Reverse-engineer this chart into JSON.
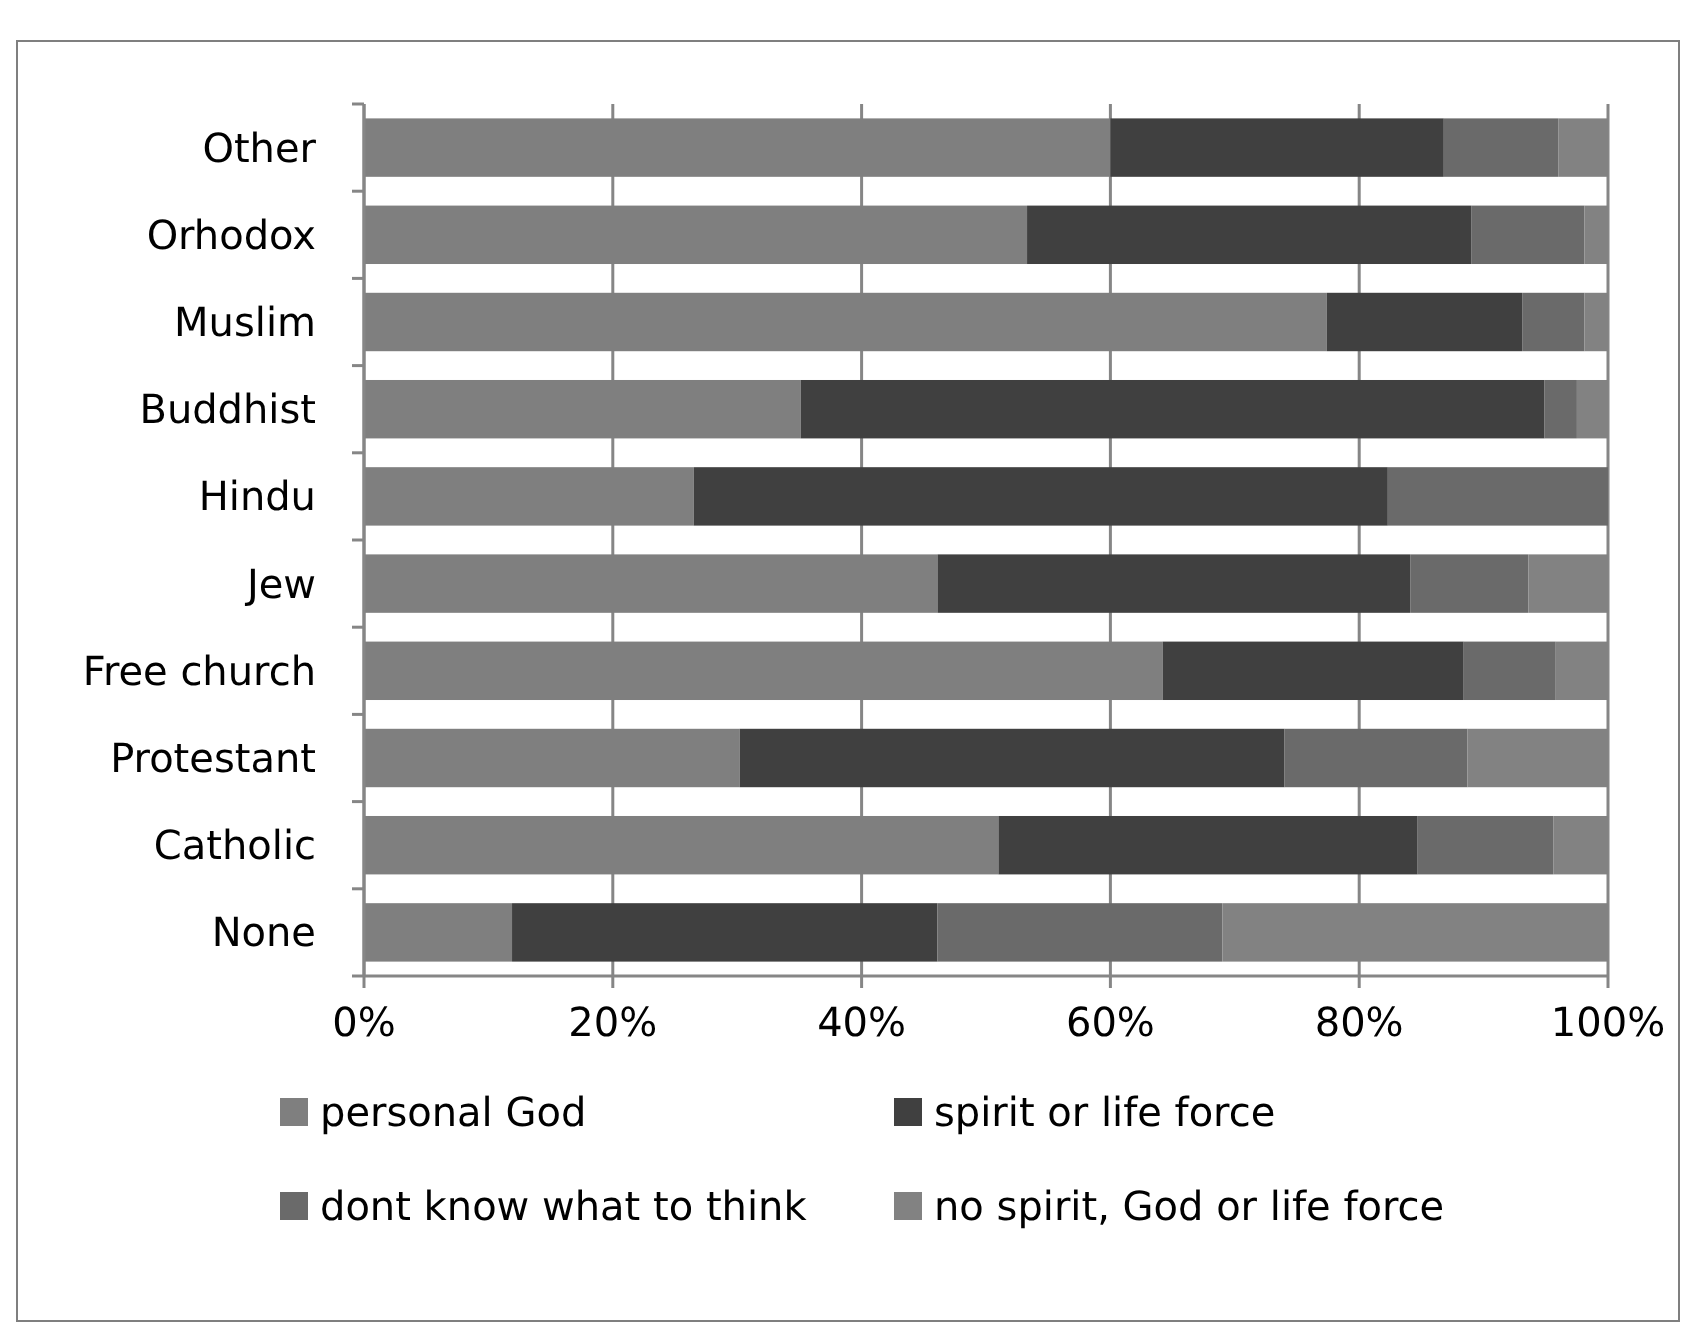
{
  "chart_data": {
    "type": "bar",
    "orientation": "horizontal",
    "stacked": true,
    "categories": [
      "Other",
      "Orhodox",
      "Muslim",
      "Buddhist",
      "Hindu",
      "Jew",
      "Free church",
      "Protestant",
      "Catholic",
      "None"
    ],
    "series": [
      {
        "name": "personal God",
        "color": "#7f7f7f",
        "values": [
          60,
          53.3,
          77.4,
          35.1,
          26.5,
          46.1,
          64.2,
          30.2,
          51,
          11.9
        ]
      },
      {
        "name": "spirit or life force",
        "color": "#404040",
        "values": [
          26.8,
          35.7,
          15.7,
          59.8,
          55.8,
          38,
          24.2,
          43.8,
          33.7,
          34.2
        ]
      },
      {
        "name": "dont know what to think",
        "color": "#6a6a6a",
        "values": [
          9.2,
          9.1,
          5,
          2.6,
          17.7,
          9.5,
          7.4,
          14.7,
          10.9,
          22.9
        ]
      },
      {
        "name": "no spirit, God or life force",
        "color": "#828282",
        "values": [
          4,
          1.9,
          1.9,
          2.5,
          0,
          6.4,
          4.2,
          11.3,
          4.4,
          31
        ]
      }
    ],
    "xlim": [
      0,
      100
    ],
    "xticks": [
      {
        "value": 0,
        "label": "0%"
      },
      {
        "value": 20,
        "label": "20%"
      },
      {
        "value": 40,
        "label": "40%"
      },
      {
        "value": 60,
        "label": "60%"
      },
      {
        "value": 80,
        "label": "80%"
      },
      {
        "value": 100,
        "label": "100%"
      }
    ],
    "grid": "x",
    "legend": "bottom"
  }
}
